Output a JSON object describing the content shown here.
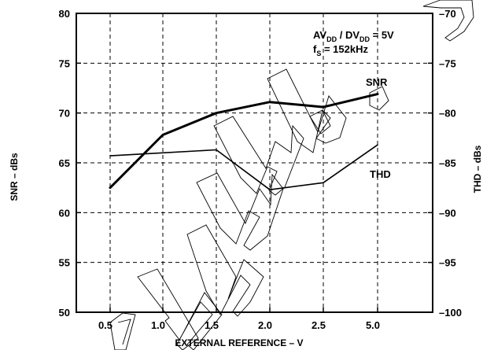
{
  "chart_data": {
    "type": "line",
    "xlabel": "EXTERNAL REFERENCE – V",
    "ylabel_left": "SNR – dBs",
    "ylabel_right": "THD – dBs",
    "categories": [
      "0.5",
      "1.0",
      "1.5",
      "2.0",
      "2.5",
      "5.0"
    ],
    "ylim_left": [
      50,
      80
    ],
    "ylim_right": [
      -100,
      -70
    ],
    "yticks_left": [
      "80",
      "75",
      "70",
      "65",
      "60",
      "55",
      "50"
    ],
    "yticks_right": [
      "–70",
      "–75",
      "–80",
      "–85",
      "–90",
      "–95",
      "–100"
    ],
    "grid": true,
    "annotation_line1": {
      "base": "AV",
      "sub": "DD",
      "sep": " / DV",
      "sub2": "DD",
      "tail": " = 5V"
    },
    "annotation_line2": {
      "base": "f",
      "sub": "S",
      "tail": " = 152kHz"
    },
    "series": [
      {
        "name": "SNR",
        "axis": "left",
        "values": [
          62.5,
          67.8,
          70.0,
          71.1,
          70.6,
          71.9
        ],
        "color": "#000000",
        "width": 3
      },
      {
        "name": "THD",
        "axis": "right",
        "values": [
          -84.3,
          -84.0,
          -83.7,
          -87.7,
          -87.0,
          -83.2
        ],
        "color": "#000000",
        "width": 1.6
      }
    ]
  }
}
